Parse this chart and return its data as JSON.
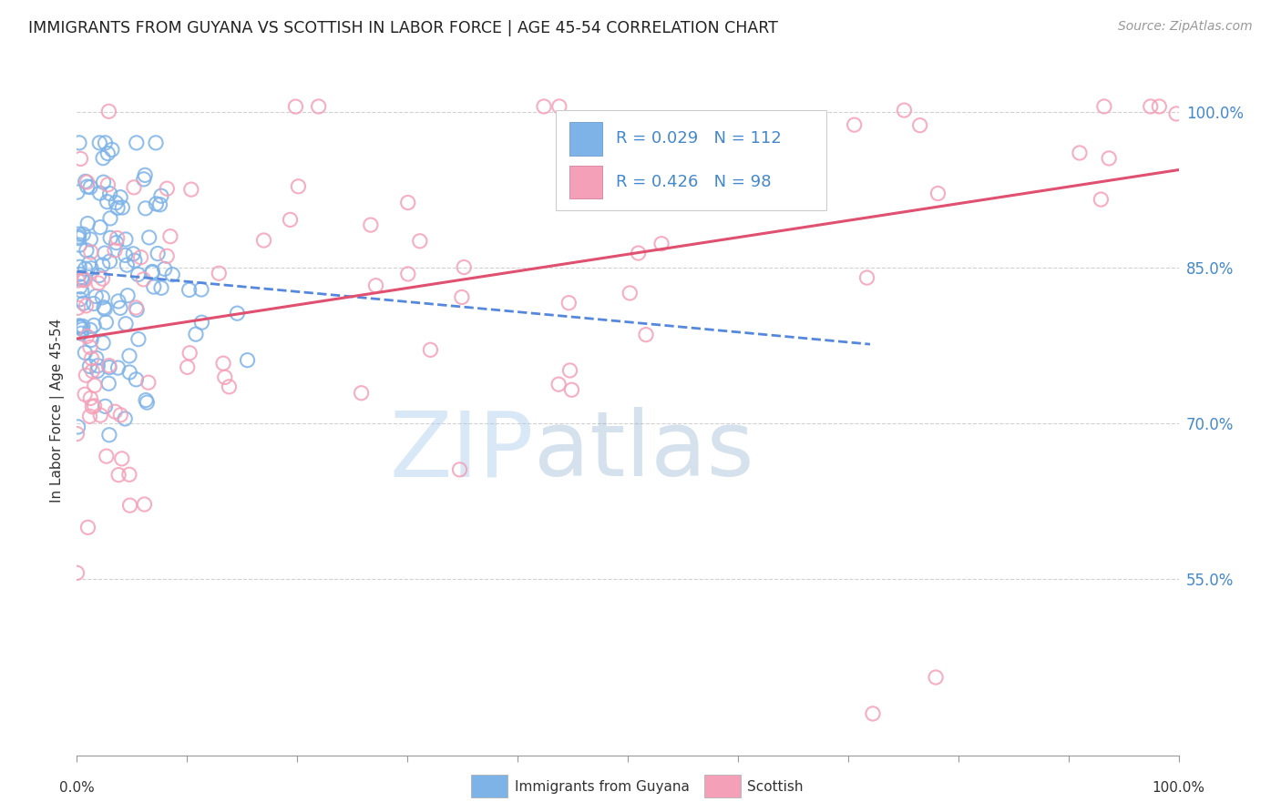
{
  "title": "IMMIGRANTS FROM GUYANA VS SCOTTISH IN LABOR FORCE | AGE 45-54 CORRELATION CHART",
  "source": "Source: ZipAtlas.com",
  "ylabel": "In Labor Force | Age 45-54",
  "x_min": 0.0,
  "x_max": 1.0,
  "y_min": 0.38,
  "y_max": 1.045,
  "x_tick_minor_vals": [
    0.0,
    0.1,
    0.2,
    0.3,
    0.4,
    0.5,
    0.6,
    0.7,
    0.8,
    0.9,
    1.0
  ],
  "x_tick_label_vals": [
    0.0,
    1.0
  ],
  "x_tick_labels": [
    "0.0%",
    "100.0%"
  ],
  "y_tick_labels": [
    "55.0%",
    "70.0%",
    "85.0%",
    "100.0%"
  ],
  "y_tick_vals": [
    0.55,
    0.7,
    0.85,
    1.0
  ],
  "guyana_color": "#7EB3E8",
  "guyana_edge_color": "#5A8FC4",
  "scottish_color": "#F4A0B8",
  "scottish_edge_color": "#D07090",
  "trend_blue_color": "#5588DD",
  "trend_pink_color": "#E05070",
  "guyana_R": 0.029,
  "guyana_N": 112,
  "scottish_R": 0.426,
  "scottish_N": 98,
  "legend_label_guyana": "Immigrants from Guyana",
  "legend_label_scottish": "Scottish",
  "watermark_zip": "ZIP",
  "watermark_atlas": "atlas",
  "background_color": "#ffffff",
  "grid_color": "#cccccc",
  "right_tick_color": "#4488CC",
  "title_color": "#222222",
  "source_color": "#999999",
  "ylabel_color": "#333333"
}
